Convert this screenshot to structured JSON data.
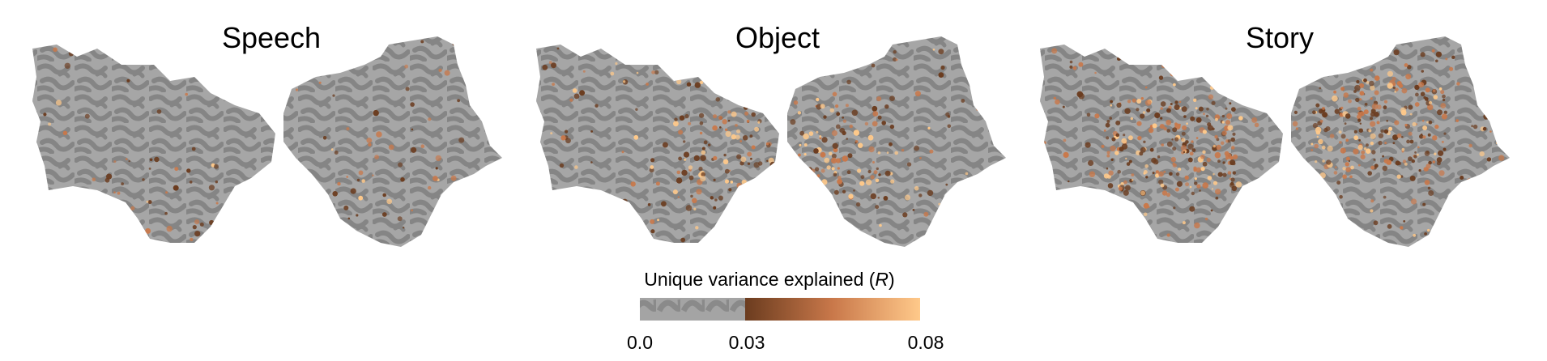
{
  "panels": [
    {
      "title": "Speech",
      "intensity": "low"
    },
    {
      "title": "Object",
      "intensity": "high"
    },
    {
      "title": "Story",
      "intensity": "medium"
    }
  ],
  "colorbar": {
    "title_prefix": "Unique variance explained (",
    "title_symbol": "R",
    "title_suffix": ")",
    "ticks": [
      "0.0",
      "0.03",
      "0.08"
    ],
    "min": 0.0,
    "threshold": 0.03,
    "max": 0.08
  },
  "colors": {
    "cortex_dark": "#8a8a8a",
    "cortex_light": "#a8a8a8",
    "map_low": "#6b3c1f",
    "map_mid": "#c9784a",
    "map_high": "#ffc98a"
  }
}
